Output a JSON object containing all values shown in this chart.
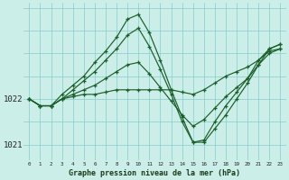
{
  "background_color": "#cceee8",
  "plot_bg_color": "#cceee8",
  "grid_color": "#88cccc",
  "line_color": "#1a5e2a",
  "title": "Graphe pression niveau de la mer (hPa)",
  "xlabel_ticks": [
    "0",
    "1",
    "2",
    "3",
    "4",
    "5",
    "6",
    "7",
    "8",
    "9",
    "10",
    "11",
    "12",
    "13",
    "14",
    "15",
    "16",
    "17",
    "18",
    "19",
    "20",
    "21",
    "22",
    "23"
  ],
  "ylim": [
    1020.65,
    1024.1
  ],
  "yticks": [
    1021,
    1022
  ],
  "series": [
    [
      1022.0,
      1021.85,
      1021.85,
      1022.0,
      1022.05,
      1022.1,
      1022.1,
      1022.15,
      1022.2,
      1022.2,
      1022.2,
      1022.2,
      1022.2,
      1022.2,
      1022.15,
      1022.1,
      1022.2,
      1022.35,
      1022.5,
      1022.6,
      1022.7,
      1022.85,
      1023.05,
      1023.1
    ],
    [
      1022.0,
      1021.85,
      1021.85,
      1022.0,
      1022.1,
      1022.2,
      1022.3,
      1022.45,
      1022.6,
      1022.75,
      1022.8,
      1022.55,
      1022.25,
      1021.95,
      1021.65,
      1021.4,
      1021.55,
      1021.8,
      1022.05,
      1022.25,
      1022.45,
      1022.75,
      1023.0,
      1023.1
    ],
    [
      1022.0,
      1021.85,
      1021.85,
      1022.0,
      1022.2,
      1022.4,
      1022.6,
      1022.85,
      1023.1,
      1023.4,
      1023.55,
      1023.15,
      1022.65,
      1022.1,
      1021.5,
      1021.05,
      1021.1,
      1021.5,
      1021.85,
      1022.15,
      1022.45,
      1022.85,
      1023.1,
      1023.2
    ],
    [
      1022.0,
      1021.85,
      1021.85,
      1022.1,
      1022.3,
      1022.5,
      1022.8,
      1023.05,
      1023.35,
      1023.75,
      1023.85,
      1023.45,
      1022.85,
      1022.2,
      1021.6,
      1021.05,
      1021.05,
      1021.35,
      1021.65,
      1022.0,
      1022.35,
      1022.75,
      1023.1,
      1023.2
    ]
  ]
}
